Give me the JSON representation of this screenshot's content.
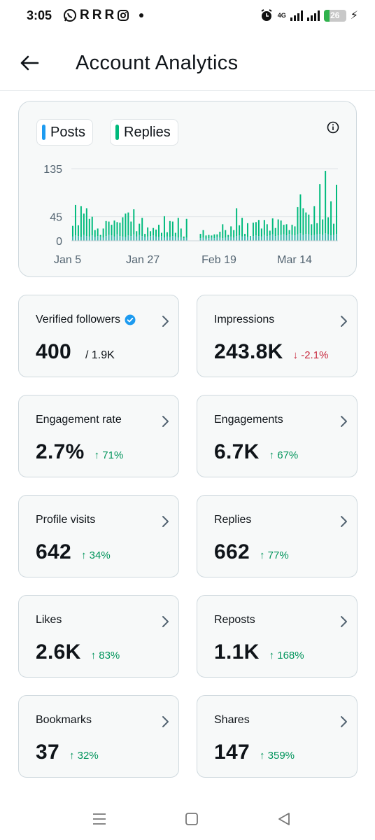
{
  "status_bar": {
    "time": "3:05",
    "app_icons": [
      "whatsapp-icon",
      "r-app-icon",
      "r-app-icon",
      "r-app-icon",
      "instagram-icon"
    ],
    "app_letters": [
      "R",
      "R",
      "R"
    ],
    "network": "4G",
    "battery": "26"
  },
  "header": {
    "title": "Account Analytics"
  },
  "chart": {
    "legend": [
      {
        "label": "Posts",
        "color": "#1d9bf0"
      },
      {
        "label": "Replies",
        "color": "#00ba7c"
      }
    ]
  },
  "chart_data": {
    "type": "bar",
    "stacked": true,
    "x_tick_labels": [
      "Jan 5",
      "Jan 27",
      "Feb 19",
      "Mar 14"
    ],
    "y_tick_labels": [
      "0",
      "45",
      "135"
    ],
    "ylim": [
      0,
      135
    ],
    "grid": true,
    "series": [
      {
        "name": "Posts",
        "color": "#1d9bf0",
        "values": [
          8,
          10,
          9,
          7,
          11,
          9,
          8,
          10,
          7,
          9,
          8,
          6,
          9,
          11,
          10,
          8,
          12,
          9,
          8,
          7,
          10,
          9,
          12,
          8,
          11,
          9,
          7,
          8,
          9,
          10,
          8,
          7,
          9,
          6,
          8,
          7,
          9,
          8,
          6,
          7,
          5,
          6,
          0,
          0,
          0,
          0,
          5,
          6,
          4,
          5,
          6,
          5,
          7,
          6,
          5,
          6,
          7,
          8,
          6,
          9,
          10,
          8,
          9,
          7,
          8,
          9,
          10,
          9,
          8,
          11,
          9,
          10,
          12,
          9,
          10,
          11,
          12,
          10,
          13,
          11,
          10,
          12,
          14,
          11,
          13,
          12,
          10,
          11,
          12,
          13,
          11,
          14,
          12,
          10,
          11,
          13
        ]
      },
      {
        "name": "Replies",
        "color": "#00ba7c",
        "values": [
          20,
          57,
          20,
          58,
          40,
          52,
          33,
          35,
          13,
          14,
          3,
          17,
          28,
          25,
          20,
          30,
          23,
          25,
          36,
          44,
          43,
          27,
          47,
          10,
          21,
          34,
          6,
          17,
          9,
          14,
          13,
          23,
          6,
          40,
          8,
          30,
          27,
          7,
          37,
          16,
          3,
          35,
          0,
          0,
          0,
          0,
          8,
          14,
          6,
          6,
          4,
          7,
          5,
          11,
          26,
          14,
          4,
          19,
          14,
          52,
          19,
          35,
          4,
          26,
          1,
          25,
          25,
          30,
          15,
          28,
          22,
          9,
          30,
          15,
          30,
          27,
          18,
          21,
          7,
          19,
          17,
          51,
          73,
          50,
          40,
          37,
          21,
          54,
          21,
          93,
          29,
          117,
          32,
          64,
          21,
          92
        ]
      }
    ]
  },
  "stats": [
    {
      "label": "Verified followers",
      "value": "400",
      "total": "/ 1.9K",
      "verified": true
    },
    {
      "label": "Impressions",
      "value": "243.8K",
      "change": "-2.1%",
      "direction": "down"
    },
    {
      "label": "Engagement rate",
      "value": "2.7%",
      "change": "71%",
      "direction": "up"
    },
    {
      "label": "Engagements",
      "value": "6.7K",
      "change": "67%",
      "direction": "up"
    },
    {
      "label": "Profile visits",
      "value": "642",
      "change": "34%",
      "direction": "up"
    },
    {
      "label": "Replies",
      "value": "662",
      "change": "77%",
      "direction": "up"
    },
    {
      "label": "Likes",
      "value": "2.6K",
      "change": "83%",
      "direction": "up"
    },
    {
      "label": "Reposts",
      "value": "1.1K",
      "change": "168%",
      "direction": "up"
    },
    {
      "label": "Bookmarks",
      "value": "37",
      "change": "32%",
      "direction": "up"
    },
    {
      "label": "Shares",
      "value": "147",
      "change": "359%",
      "direction": "up"
    }
  ],
  "colors": {
    "accent_blue": "#1d9bf0",
    "accent_green": "#00ba7c",
    "positive": "#00945b",
    "negative": "#c8283e",
    "chart_teal": "#3fb8b0"
  },
  "navigation": [
    "menu-icon",
    "home-square-icon",
    "back-triangle-icon"
  ]
}
